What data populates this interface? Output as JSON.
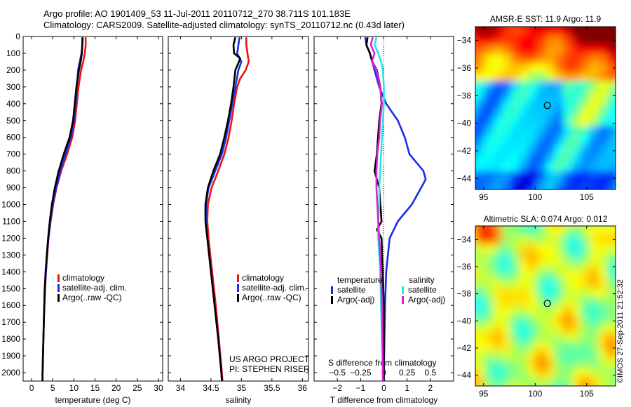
{
  "header": {
    "line1": "Argo profile: AO 1901409_53 11-Jul-2011 20110712_270 38.711S 101.183E",
    "line2": "Climatology: CARS2009. Satellite-adjusted climatology: synTS_20110712.nc (0.43d later)"
  },
  "footer_stamp": "©IMOS 27-Sep-2011 21:52:32",
  "colors": {
    "red": "#e8141c",
    "blue": "#1a2ee6",
    "black": "#000000",
    "cyan": "#22e8e8",
    "magenta": "#e020d8"
  },
  "chart_data": [
    {
      "type": "line",
      "xlabel": "temperature (deg C)",
      "ylabel": "",
      "xlim": [
        -2,
        31
      ],
      "ylim": [
        2050,
        0
      ],
      "xticks": [
        0,
        5,
        10,
        15,
        20,
        25,
        30
      ],
      "yticks": [
        0,
        100,
        200,
        300,
        400,
        500,
        600,
        700,
        800,
        900,
        1000,
        1100,
        1200,
        1300,
        1400,
        1500,
        1600,
        1700,
        1800,
        1900,
        2000
      ],
      "legend": [
        "climatology",
        "satellite-adj. clim.",
        "Argo(..raw -QC)"
      ],
      "series": [
        {
          "name": "climatology",
          "color": "red",
          "y": [
            5,
            50,
            100,
            150,
            200,
            300,
            400,
            500,
            600,
            700,
            800,
            900,
            1000,
            1100,
            1200,
            1300,
            1400,
            1500,
            1700,
            2000,
            2050
          ],
          "x": [
            12.8,
            12.8,
            12.6,
            12.2,
            11.7,
            11.1,
            10.7,
            10.3,
            9.6,
            8.4,
            7.0,
            5.9,
            5.1,
            4.5,
            4.0,
            3.7,
            3.4,
            3.2,
            2.9,
            2.6,
            2.6
          ]
        },
        {
          "name": "satellite-adj. clim.",
          "color": "blue",
          "y": [
            5,
            50,
            100,
            150,
            200,
            300,
            400,
            500,
            600,
            700,
            800,
            900,
            1000,
            1100,
            1200,
            1300,
            1400,
            1500,
            1700,
            2000,
            2050
          ],
          "x": [
            12.0,
            12.0,
            11.8,
            11.4,
            11.0,
            10.7,
            10.4,
            10.0,
            9.3,
            8.0,
            6.8,
            5.8,
            5.0,
            4.4,
            4.0,
            3.6,
            3.4,
            3.1,
            2.9,
            2.6,
            2.6
          ]
        },
        {
          "name": "Argo(..raw -QC)",
          "color": "black",
          "y": [
            5,
            50,
            100,
            150,
            200,
            300,
            400,
            500,
            600,
            700,
            800,
            900,
            1000,
            1100,
            1200,
            1300,
            1400,
            1500,
            1700,
            2000,
            2050
          ],
          "x": [
            12.1,
            12.0,
            11.9,
            11.6,
            11.2,
            10.6,
            10.2,
            9.8,
            9.0,
            7.6,
            6.4,
            5.5,
            4.8,
            4.3,
            3.9,
            3.6,
            3.3,
            3.1,
            2.9,
            2.6,
            2.6
          ]
        }
      ]
    },
    {
      "type": "line",
      "xlabel": "salinity",
      "xlim": [
        33.8,
        36.1
      ],
      "ylim": [
        2050,
        0
      ],
      "xticks": [
        34,
        34.5,
        35,
        35.5,
        36
      ],
      "legend": [
        "climatology",
        "satellite-adj. clim.",
        "Argo(..raw -QC)"
      ],
      "annotation": [
        "US ARGO PROJECT",
        "PI: STEPHEN RISER"
      ],
      "series": [
        {
          "name": "climatology",
          "color": "red",
          "y": [
            5,
            50,
            100,
            150,
            200,
            250,
            300,
            400,
            500,
            600,
            700,
            800,
            900,
            1000,
            1100,
            1200,
            1400,
            1600,
            1800,
            2000,
            2050
          ],
          "x": [
            35.08,
            35.08,
            35.1,
            35.12,
            35.07,
            34.98,
            34.93,
            34.88,
            34.84,
            34.79,
            34.72,
            34.62,
            34.51,
            34.45,
            34.44,
            34.46,
            34.52,
            34.58,
            34.63,
            34.68,
            34.69
          ]
        },
        {
          "name": "satellite-adj. clim.",
          "color": "blue",
          "y": [
            5,
            50,
            100,
            150,
            200,
            300,
            400,
            500,
            600,
            700,
            800,
            900,
            1000,
            1100,
            1200,
            1400,
            1600,
            1800,
            2000,
            2050
          ],
          "x": [
            34.97,
            34.95,
            34.93,
            35.0,
            34.95,
            34.9,
            34.85,
            34.8,
            34.75,
            34.68,
            34.57,
            34.46,
            34.42,
            34.42,
            34.44,
            34.5,
            34.56,
            34.62,
            34.67,
            34.68
          ]
        },
        {
          "name": "Argo(..raw -QC)",
          "color": "black",
          "y": [
            5,
            50,
            100,
            130,
            150,
            200,
            300,
            400,
            500,
            600,
            700,
            800,
            900,
            1000,
            1100,
            1200,
            1400,
            1600,
            1800,
            2000,
            2050
          ],
          "x": [
            34.9,
            34.87,
            34.88,
            34.98,
            34.96,
            34.9,
            34.87,
            34.83,
            34.78,
            34.72,
            34.65,
            34.54,
            34.45,
            34.41,
            34.41,
            34.44,
            34.5,
            34.56,
            34.62,
            34.67,
            34.68
          ]
        }
      ]
    },
    {
      "type": "line",
      "xlabel": "T difference from climatology",
      "xlabel2": "S difference from climatology",
      "xlim": [
        -3,
        3
      ],
      "ylim": [
        2050,
        0
      ],
      "xticks": [
        -2,
        -1,
        0,
        1,
        2
      ],
      "xticks_top": [
        -0.5,
        -0.25,
        0,
        0.25,
        0.5
      ],
      "legend_titles": [
        "temperature",
        "salinity"
      ],
      "legend": [
        "satellite",
        "Argo(-adj)",
        "satellite",
        "Argo(-adj)"
      ],
      "series": [
        {
          "name": "satellite",
          "color": "blue",
          "quantity": "temperature",
          "y": [
            5,
            50,
            100,
            150,
            200,
            300,
            400,
            500,
            600,
            700,
            800,
            850,
            900,
            1000,
            1100,
            1200,
            1400,
            1600,
            2000,
            2050
          ],
          "x": [
            -0.8,
            -0.75,
            -0.6,
            -0.5,
            -0.4,
            -0.2,
            0.1,
            0.6,
            0.9,
            1.1,
            1.7,
            1.8,
            1.6,
            1.2,
            0.6,
            0.25,
            0.1,
            0.05,
            0.0,
            0.0
          ]
        },
        {
          "name": "Argo(-adj)",
          "color": "black",
          "quantity": "temperature",
          "y": [
            5,
            50,
            100,
            150,
            200,
            300,
            400,
            500,
            600,
            700,
            800,
            900,
            1000,
            1100,
            1150,
            1200,
            1400,
            1600,
            2000,
            2050
          ],
          "x": [
            -0.7,
            -0.75,
            -0.6,
            -0.5,
            -0.3,
            -0.15,
            -0.1,
            -0.2,
            -0.25,
            -0.3,
            -0.4,
            -0.2,
            -0.15,
            -0.1,
            -0.3,
            -0.1,
            -0.05,
            0.0,
            0.0,
            0.0
          ]
        },
        {
          "name": "satellite",
          "color": "cyan",
          "quantity": "salinity",
          "y": [
            5,
            50,
            100,
            150,
            200,
            300,
            400,
            500,
            600,
            700,
            800,
            900,
            1000,
            1100,
            1200,
            1300,
            1400,
            1600,
            1800,
            2000,
            2050
          ],
          "x": [
            -0.08,
            -0.1,
            -0.06,
            -0.03,
            -0.01,
            0.0,
            0.0,
            -0.01,
            -0.02,
            -0.03,
            -0.04,
            -0.05,
            -0.05,
            -0.06,
            -0.06,
            -0.05,
            -0.04,
            -0.03,
            -0.02,
            -0.01,
            -0.01
          ]
        },
        {
          "name": "Argo(-adj)",
          "color": "magenta",
          "quantity": "salinity",
          "y": [
            5,
            50,
            100,
            150,
            200,
            300,
            400,
            500,
            600,
            700,
            800,
            900,
            1000,
            1100,
            1200,
            1400,
            1600,
            2000,
            2050
          ],
          "x": [
            -0.12,
            -0.14,
            -0.1,
            -0.13,
            -0.08,
            -0.04,
            -0.02,
            -0.04,
            -0.05,
            -0.07,
            -0.08,
            -0.08,
            -0.07,
            -0.06,
            -0.05,
            -0.03,
            -0.02,
            -0.01,
            -0.01
          ]
        }
      ]
    },
    {
      "type": "heatmap",
      "title": "AMSR-E SST: 11.9 Argo: 11.9",
      "xlim": [
        94.2,
        107.8
      ],
      "ylim": [
        -44.8,
        -33
      ],
      "xticks": [
        95,
        100,
        105
      ],
      "yticks": [
        -34,
        -36,
        -38,
        -40,
        -42,
        -44
      ],
      "colormap": "jet",
      "marker": {
        "lon": 101.183,
        "lat": -38.711
      }
    },
    {
      "type": "heatmap",
      "title": "Altimetric SLA: 0.074 Argo: 0.012",
      "xlim": [
        94.2,
        107.8
      ],
      "ylim": [
        -44.8,
        -33
      ],
      "xticks": [
        95,
        100,
        105
      ],
      "yticks": [
        -34,
        -36,
        -38,
        -40,
        -42,
        -44
      ],
      "colormap": "jet",
      "marker": {
        "lon": 101.183,
        "lat": -38.711
      }
    }
  ]
}
